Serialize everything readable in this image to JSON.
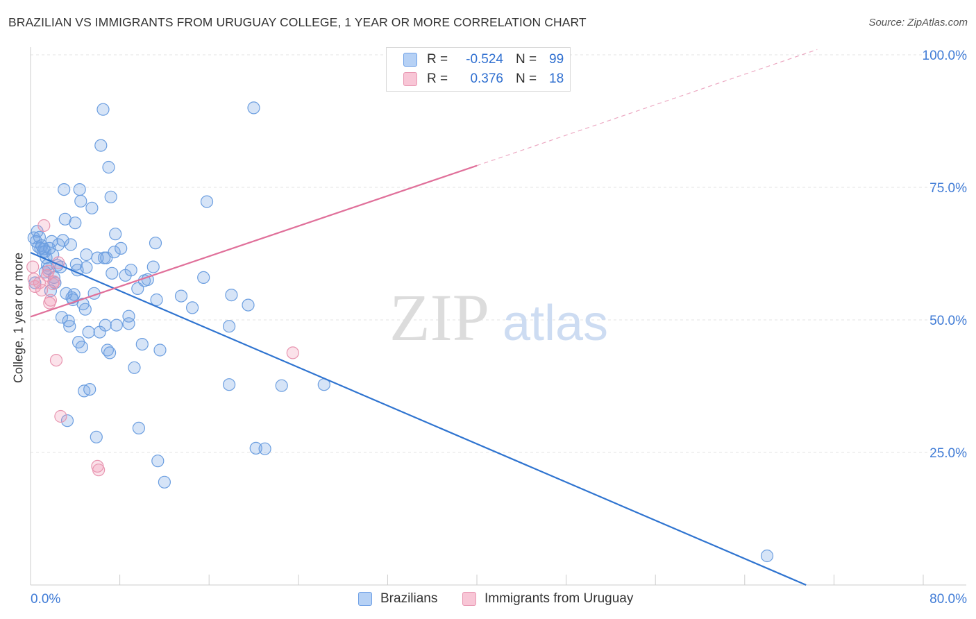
{
  "title": "BRAZILIAN VS IMMIGRANTS FROM URUGUAY COLLEGE, 1 YEAR OR MORE CORRELATION CHART",
  "source": "Source: ZipAtlas.com",
  "watermark": {
    "zip": "ZIP",
    "atlas": "atlas"
  },
  "legend": {
    "series": [
      {
        "r_label": "R =",
        "r_value": "-0.524",
        "n_label": "N =",
        "n_value": "99",
        "fill": "#b6d1f5",
        "stroke": "#6ea0e6"
      },
      {
        "r_label": "R =",
        "r_value": "0.376",
        "n_label": "N =",
        "n_value": "18",
        "fill": "#f8c6d6",
        "stroke": "#e896b1"
      }
    ]
  },
  "bottom_legend": [
    "Brazilians",
    "Immigrants from Uruguay"
  ],
  "colors": {
    "blue": "#2f74d0",
    "pink": "#e0709a",
    "blue_fill": "rgba(120,165,230,0.30)",
    "blue_stroke": "#6b9ee0",
    "pink_fill": "rgba(240,150,180,0.28)",
    "pink_stroke": "#e895b0",
    "tick_label": "#3f7bd6",
    "grid": "#e3e3e3"
  },
  "chart_data": {
    "type": "scatter",
    "xlabel": "",
    "ylabel": "College, 1 year or more",
    "xlim": [
      0,
      80
    ],
    "ylim": [
      0,
      105
    ],
    "x_tick_labels": [
      "0.0%",
      "80.0%"
    ],
    "y_ticks": [
      25,
      50,
      75,
      100
    ],
    "y_tick_labels": [
      "25.0%",
      "50.0%",
      "75.0%",
      "100.0%"
    ],
    "grid": true,
    "series": [
      {
        "name": "Brazilians",
        "color": "#6b9ee0",
        "trend": {
          "x0": 0,
          "y0": 62.7,
          "x1": 69.5,
          "y1": 0,
          "extend_dashed_to": null
        },
        "points": [
          [
            0.3,
            65.5
          ],
          [
            0.5,
            64.8
          ],
          [
            0.6,
            66.7
          ],
          [
            0.7,
            63.8
          ],
          [
            0.8,
            65.6
          ],
          [
            0.9,
            63.5
          ],
          [
            1.0,
            64.0
          ],
          [
            1.1,
            62.8
          ],
          [
            1.2,
            63.4
          ],
          [
            1.3,
            62.9
          ],
          [
            1.4,
            61.7
          ],
          [
            1.5,
            60.3
          ],
          [
            1.6,
            59.7
          ],
          [
            1.7,
            63.5
          ],
          [
            1.8,
            55.5
          ],
          [
            1.9,
            64.8
          ],
          [
            2.0,
            62.3
          ],
          [
            2.1,
            58.0
          ],
          [
            2.2,
            57.0
          ],
          [
            2.4,
            60.3
          ],
          [
            2.5,
            64.2
          ],
          [
            2.7,
            60.0
          ],
          [
            2.8,
            50.5
          ],
          [
            3.0,
            74.6
          ],
          [
            3.1,
            69.0
          ],
          [
            3.3,
            31.0
          ],
          [
            3.4,
            49.8
          ],
          [
            3.5,
            48.8
          ],
          [
            3.6,
            64.2
          ],
          [
            3.7,
            54.2
          ],
          [
            3.8,
            53.8
          ],
          [
            3.9,
            54.8
          ],
          [
            4.0,
            68.3
          ],
          [
            4.1,
            60.5
          ],
          [
            4.2,
            59.4
          ],
          [
            4.3,
            45.8
          ],
          [
            4.4,
            74.6
          ],
          [
            4.5,
            72.4
          ],
          [
            4.6,
            44.9
          ],
          [
            4.7,
            53.0
          ],
          [
            4.8,
            36.6
          ],
          [
            5.0,
            59.9
          ],
          [
            5.0,
            62.3
          ],
          [
            5.2,
            47.7
          ],
          [
            5.3,
            36.9
          ],
          [
            5.5,
            71.1
          ],
          [
            5.7,
            55.0
          ],
          [
            5.9,
            27.9
          ],
          [
            6.0,
            61.7
          ],
          [
            6.2,
            47.7
          ],
          [
            6.3,
            82.9
          ],
          [
            6.5,
            89.7
          ],
          [
            6.6,
            61.7
          ],
          [
            6.7,
            49.0
          ],
          [
            6.8,
            61.7
          ],
          [
            6.9,
            44.3
          ],
          [
            7.0,
            78.8
          ],
          [
            7.2,
            73.2
          ],
          [
            7.3,
            58.8
          ],
          [
            7.5,
            62.8
          ],
          [
            7.6,
            66.2
          ],
          [
            7.7,
            49.0
          ],
          [
            8.1,
            63.5
          ],
          [
            8.5,
            58.4
          ],
          [
            8.8,
            50.7
          ],
          [
            8.8,
            49.3
          ],
          [
            9.0,
            59.4
          ],
          [
            9.3,
            41.0
          ],
          [
            9.6,
            55.9
          ],
          [
            9.7,
            29.6
          ],
          [
            10.0,
            45.4
          ],
          [
            10.2,
            57.4
          ],
          [
            10.5,
            57.6
          ],
          [
            11.0,
            60.0
          ],
          [
            11.2,
            64.5
          ],
          [
            11.3,
            53.8
          ],
          [
            11.4,
            23.4
          ],
          [
            11.6,
            44.3
          ],
          [
            12.0,
            19.4
          ],
          [
            13.5,
            54.5
          ],
          [
            14.5,
            52.3
          ],
          [
            15.5,
            58.0
          ],
          [
            15.8,
            72.3
          ],
          [
            17.8,
            48.8
          ],
          [
            17.8,
            37.8
          ],
          [
            18.0,
            54.7
          ],
          [
            19.5,
            52.8
          ],
          [
            20.0,
            90.0
          ],
          [
            20.2,
            25.8
          ],
          [
            21.0,
            25.7
          ],
          [
            22.5,
            37.6
          ],
          [
            26.3,
            37.8
          ],
          [
            66.0,
            5.5
          ],
          [
            0.4,
            57.0
          ],
          [
            1.3,
            59.0
          ],
          [
            2.9,
            65.0
          ],
          [
            3.2,
            55.0
          ],
          [
            4.9,
            52.0
          ],
          [
            7.1,
            43.8
          ]
        ]
      },
      {
        "name": "Immigrants from Uruguay",
        "color": "#e895b0",
        "trend": {
          "x0": 0,
          "y0": 50.6,
          "x1": 40.0,
          "y1": 79.1,
          "extend_dashed_to": [
            70.5,
            101.0
          ]
        },
        "points": [
          [
            0.2,
            60.0
          ],
          [
            0.3,
            57.7
          ],
          [
            0.4,
            56.3
          ],
          [
            0.8,
            57.0
          ],
          [
            1.0,
            55.6
          ],
          [
            1.2,
            67.8
          ],
          [
            1.5,
            58.4
          ],
          [
            1.6,
            59.2
          ],
          [
            1.7,
            53.2
          ],
          [
            1.8,
            53.7
          ],
          [
            2.0,
            56.8
          ],
          [
            2.1,
            57.2
          ],
          [
            2.3,
            42.4
          ],
          [
            2.5,
            60.8
          ],
          [
            2.7,
            31.8
          ],
          [
            6.0,
            22.4
          ],
          [
            6.1,
            21.7
          ],
          [
            23.5,
            43.8
          ]
        ]
      }
    ]
  }
}
